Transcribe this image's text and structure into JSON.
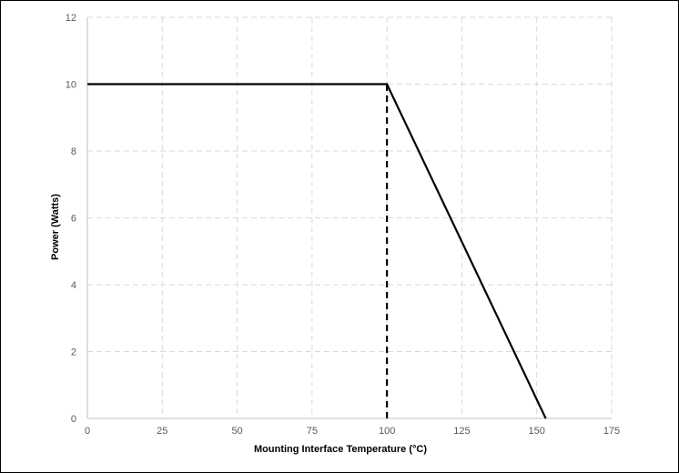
{
  "chart_data": {
    "type": "line",
    "title": "",
    "xlabel": "Mounting Interface Temperature (°C)",
    "ylabel": "Power (Watts)",
    "xlim": [
      0,
      175
    ],
    "ylim": [
      0,
      12
    ],
    "xticks": [
      0,
      25,
      50,
      75,
      100,
      125,
      150,
      175
    ],
    "yticks": [
      0,
      2,
      4,
      6,
      8,
      10,
      12
    ],
    "grid": true,
    "legend": "none",
    "series": [
      {
        "x": [
          0,
          100,
          153
        ],
        "y": [
          10,
          10,
          0
        ],
        "color": "#000000",
        "style": "solid"
      },
      {
        "x": [
          100,
          100
        ],
        "y": [
          0,
          10
        ],
        "color": "#000000",
        "style": "dashed"
      }
    ]
  }
}
